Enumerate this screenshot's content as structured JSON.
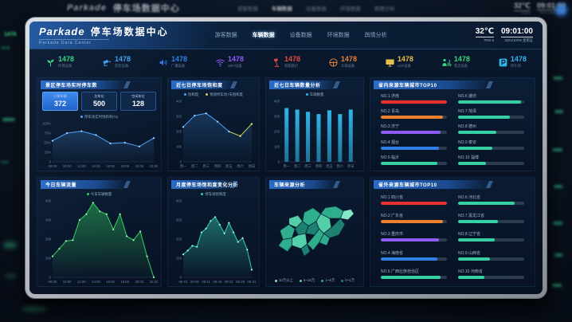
{
  "header": {
    "brand": "Parkade",
    "title": "停车场数据中心",
    "subtitle": "Parkade Data Center",
    "nav": [
      {
        "label": "游客数据",
        "active": false
      },
      {
        "label": "车辆数据",
        "active": true
      },
      {
        "label": "设备数据",
        "active": false
      },
      {
        "label": "环境数据",
        "active": false
      },
      {
        "label": "舆情分析",
        "active": false
      }
    ],
    "temperature": "32℃",
    "temperature_sub": "PM2.5",
    "time": "09:01:00",
    "date": "2021/10/08 星期五"
  },
  "kpis": [
    {
      "icon": "plant-icon",
      "label": "环境设备",
      "value": "1478",
      "color": "#3ad67e"
    },
    {
      "icon": "camera-icon",
      "label": "监控设备",
      "value": "1478",
      "color": "#41a0f0"
    },
    {
      "icon": "speaker-icon",
      "label": "广播设备",
      "value": "1478",
      "color": "#2f7fe8"
    },
    {
      "icon": "wifi-icon",
      "label": "WIFI设备",
      "value": "1478",
      "color": "#8d5cf6"
    },
    {
      "icon": "lamp-icon",
      "label": "智能路灯",
      "value": "1478",
      "color": "#e84a45"
    },
    {
      "icon": "steering-wheel-icon",
      "label": "车辆设备",
      "value": "1478",
      "color": "#e8813c"
    },
    {
      "icon": "screen-icon",
      "label": "LED设备",
      "value": "1478",
      "color": "#e6c04a"
    },
    {
      "icon": "people-icon",
      "label": "客流设备",
      "value": "1478",
      "color": "#3ad67e"
    },
    {
      "icon": "parking-icon",
      "label": "停车场",
      "value": "1478",
      "color": "#35b4e8"
    }
  ],
  "panels": {
    "realtime": {
      "title": "景区停车场实时停车数",
      "stats": [
        {
          "label": "已停车辆",
          "value": "372",
          "highlight": true
        },
        {
          "label": "总车位",
          "value": "500",
          "highlight": false
        },
        {
          "label": "空闲车位",
          "value": "128",
          "highlight": false
        }
      ]
    },
    "weekly_saturation": {
      "title": "近七日停车场饱和度"
    },
    "weekly_vehicles": {
      "title": "近七日车辆数量分析"
    },
    "province_top10": {
      "title": "省内来源车辆城市TOP10",
      "items": [
        {
          "rank": "NO.1",
          "name": "济南",
          "pct": 100,
          "color": "#e8312f"
        },
        {
          "rank": "NO.2",
          "name": "青岛",
          "pct": 94,
          "color": "#f07f2e"
        },
        {
          "rank": "NO.3",
          "name": "济宁",
          "pct": 90,
          "color": "#8d5cf6"
        },
        {
          "rank": "NO.4",
          "name": "烟台",
          "pct": 88,
          "color": "#2f7fe8"
        },
        {
          "rank": "NO.5",
          "name": "临沂",
          "pct": 86,
          "color": "#35d1a5"
        },
        {
          "rank": "NO.6",
          "name": "潍坊",
          "pct": 95,
          "color": "#35d1a5"
        },
        {
          "rank": "NO.7",
          "name": "菏泽",
          "pct": 78,
          "color": "#35d1a5"
        },
        {
          "rank": "NO.8",
          "name": "德州",
          "pct": 58,
          "color": "#35d1a5"
        },
        {
          "rank": "NO.9",
          "name": "泰安",
          "pct": 52,
          "color": "#35d1a5"
        },
        {
          "rank": "NO.10",
          "name": "淄博",
          "pct": 42,
          "color": "#35d1a5"
        }
      ]
    },
    "today_flow": {
      "title": "今日车辆流量"
    },
    "monthly": {
      "title": "月度停车场饱和度变化分析"
    },
    "map": {
      "title": "车辆来源分析",
      "legend": [
        {
          "label": "10万以上",
          "color": "#84e8c6"
        },
        {
          "label": "5~10万",
          "color": "#55cfa7"
        },
        {
          "label": "1~5万",
          "color": "#2fae8e"
        },
        {
          "label": "0~1万",
          "color": "#1d8070"
        }
      ]
    },
    "outer_top10": {
      "title": "省外来源车辆城市TOP10",
      "items": [
        {
          "rank": "NO.1",
          "name": "四川省",
          "pct": 100,
          "color": "#e8312f"
        },
        {
          "rank": "NO.2",
          "name": "广东省",
          "pct": 94,
          "color": "#f07f2e"
        },
        {
          "rank": "NO.3",
          "name": "重庆市",
          "pct": 88,
          "color": "#8d5cf6"
        },
        {
          "rank": "NO.4",
          "name": "海南省",
          "pct": 85,
          "color": "#2f7fe8"
        },
        {
          "rank": "NO.5",
          "name": "广西壮族自治区",
          "pct": 90,
          "color": "#35d1a5"
        },
        {
          "rank": "NO.6",
          "name": "河北省",
          "pct": 85,
          "color": "#35d1a5"
        },
        {
          "rank": "NO.7",
          "name": "黑龙江省",
          "pct": 60,
          "color": "#35d1a5"
        },
        {
          "rank": "NO.8",
          "name": "辽宁省",
          "pct": 55,
          "color": "#35d1a5"
        },
        {
          "rank": "NO.9",
          "name": "山西省",
          "pct": 48,
          "color": "#35d1a5"
        },
        {
          "rank": "NO.10",
          "name": "河南省",
          "pct": 40,
          "color": "#35d1a5"
        }
      ]
    }
  },
  "chart_data": [
    {
      "key": "realtime_saturation",
      "type": "line",
      "title": "停车场实时饱和率(%)",
      "x": [
        "09:00",
        "10:00",
        "12:00",
        "14:00",
        "16:00",
        "18:00",
        "20:00",
        "22:00"
      ],
      "values": [
        55,
        75,
        80,
        70,
        48,
        50,
        40,
        62
      ],
      "ylim": [
        0,
        100
      ],
      "yticks": [
        "0",
        "25%",
        "50%",
        "75%",
        "100%"
      ],
      "color": "#4da3ff",
      "legend": [
        "停车场实时饱和率(%)"
      ],
      "grid": false,
      "legend_position": "top"
    },
    {
      "key": "weekly_saturation",
      "type": "line2",
      "title": "近七日停车场饱和度",
      "x": [
        "周一",
        "周二",
        "周三",
        "周四",
        "周五",
        "周六",
        "周日"
      ],
      "values": [
        230,
        305,
        320,
        265,
        200,
        170,
        250
      ],
      "split": 4,
      "ylim": [
        0,
        400
      ],
      "yticks": [
        "0",
        "100",
        "200",
        "300",
        "400"
      ],
      "colors": [
        "#4da3ff",
        "#c8d44e"
      ],
      "legend": [
        "饱和度",
        "预测停车场7天饱和度"
      ],
      "grid": false,
      "legend_position": "top"
    },
    {
      "key": "weekly_vehicles",
      "type": "bar",
      "title": "近七日车辆数量分析",
      "categories": [
        "周一",
        "周二",
        "周三",
        "周四",
        "周五",
        "周六",
        "周日"
      ],
      "values": [
        355,
        345,
        330,
        315,
        340,
        315,
        345
      ],
      "ylim": [
        0,
        400
      ],
      "yticks": [
        "0",
        "100",
        "200",
        "300",
        "400"
      ],
      "color": "#32bdf2",
      "legend": [
        "车辆数量"
      ],
      "grid": false,
      "legend_position": "top"
    },
    {
      "key": "today_flow",
      "type": "area",
      "title": "今日车辆流量",
      "x": [
        "08:00",
        "10:00",
        "12:00",
        "14:00",
        "16:00",
        "18:00",
        "20:00",
        "22:00"
      ],
      "values": [
        110,
        150,
        190,
        195,
        300,
        330,
        390,
        345,
        330,
        250,
        330,
        215,
        195,
        240,
        110,
        0
      ],
      "ylim": [
        0,
        400
      ],
      "yticks": [
        "0",
        "100",
        "200",
        "300",
        "400"
      ],
      "color": "#36d15e",
      "legend": [
        "今日车辆数量"
      ],
      "grid": false,
      "legend_position": "top"
    },
    {
      "key": "monthly_saturation",
      "type": "area",
      "title": "月度停车场饱和度变化分析",
      "x": [
        "08-01",
        "08-06",
        "08-11",
        "08-16",
        "08-21",
        "08-26",
        "08-31"
      ],
      "values": [
        120,
        140,
        165,
        160,
        235,
        255,
        295,
        315,
        275,
        230,
        285,
        235,
        185,
        205,
        145,
        40
      ],
      "ylim": [
        0,
        400
      ],
      "yticks": [
        "0",
        "100",
        "200",
        "300",
        "400"
      ],
      "color": "#36d1af",
      "legend": [
        "停车场饱和度"
      ],
      "grid": false,
      "legend_position": "top"
    }
  ]
}
